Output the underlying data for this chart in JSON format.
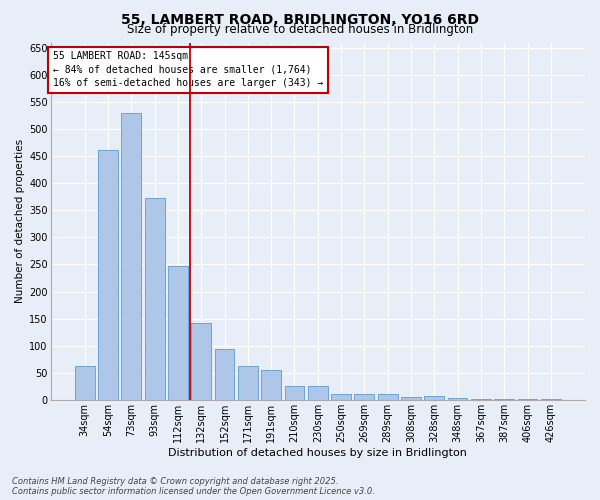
{
  "title": "55, LAMBERT ROAD, BRIDLINGTON, YO16 6RD",
  "subtitle": "Size of property relative to detached houses in Bridlington",
  "xlabel": "Distribution of detached houses by size in Bridlington",
  "ylabel": "Number of detached properties",
  "categories": [
    "34sqm",
    "54sqm",
    "73sqm",
    "93sqm",
    "112sqm",
    "132sqm",
    "152sqm",
    "171sqm",
    "191sqm",
    "210sqm",
    "230sqm",
    "250sqm",
    "269sqm",
    "289sqm",
    "308sqm",
    "328sqm",
    "348sqm",
    "367sqm",
    "387sqm",
    "406sqm",
    "426sqm"
  ],
  "values": [
    62,
    462,
    530,
    372,
    248,
    142,
    93,
    62,
    55,
    25,
    25,
    10,
    10,
    11,
    6,
    7,
    4,
    2,
    2,
    1,
    1
  ],
  "bar_color": "#aec6e8",
  "bar_edge_color": "#5b9bd5",
  "background_color": "#e8eef7",
  "grid_color": "#ffffff",
  "vline_color": "#c00000",
  "annotation_box_text": "55 LAMBERT ROAD: 145sqm\n← 84% of detached houses are smaller (1,764)\n16% of semi-detached houses are larger (343) →",
  "annotation_box_color": "#c00000",
  "ylim": [
    0,
    660
  ],
  "yticks": [
    0,
    50,
    100,
    150,
    200,
    250,
    300,
    350,
    400,
    450,
    500,
    550,
    600,
    650
  ],
  "footer_line1": "Contains HM Land Registry data © Crown copyright and database right 2025.",
  "footer_line2": "Contains public sector information licensed under the Open Government Licence v3.0.",
  "title_fontsize": 10,
  "subtitle_fontsize": 8.5,
  "xlabel_fontsize": 8,
  "ylabel_fontsize": 7.5,
  "tick_fontsize": 7,
  "footer_fontsize": 6,
  "annotation_fontsize": 7
}
